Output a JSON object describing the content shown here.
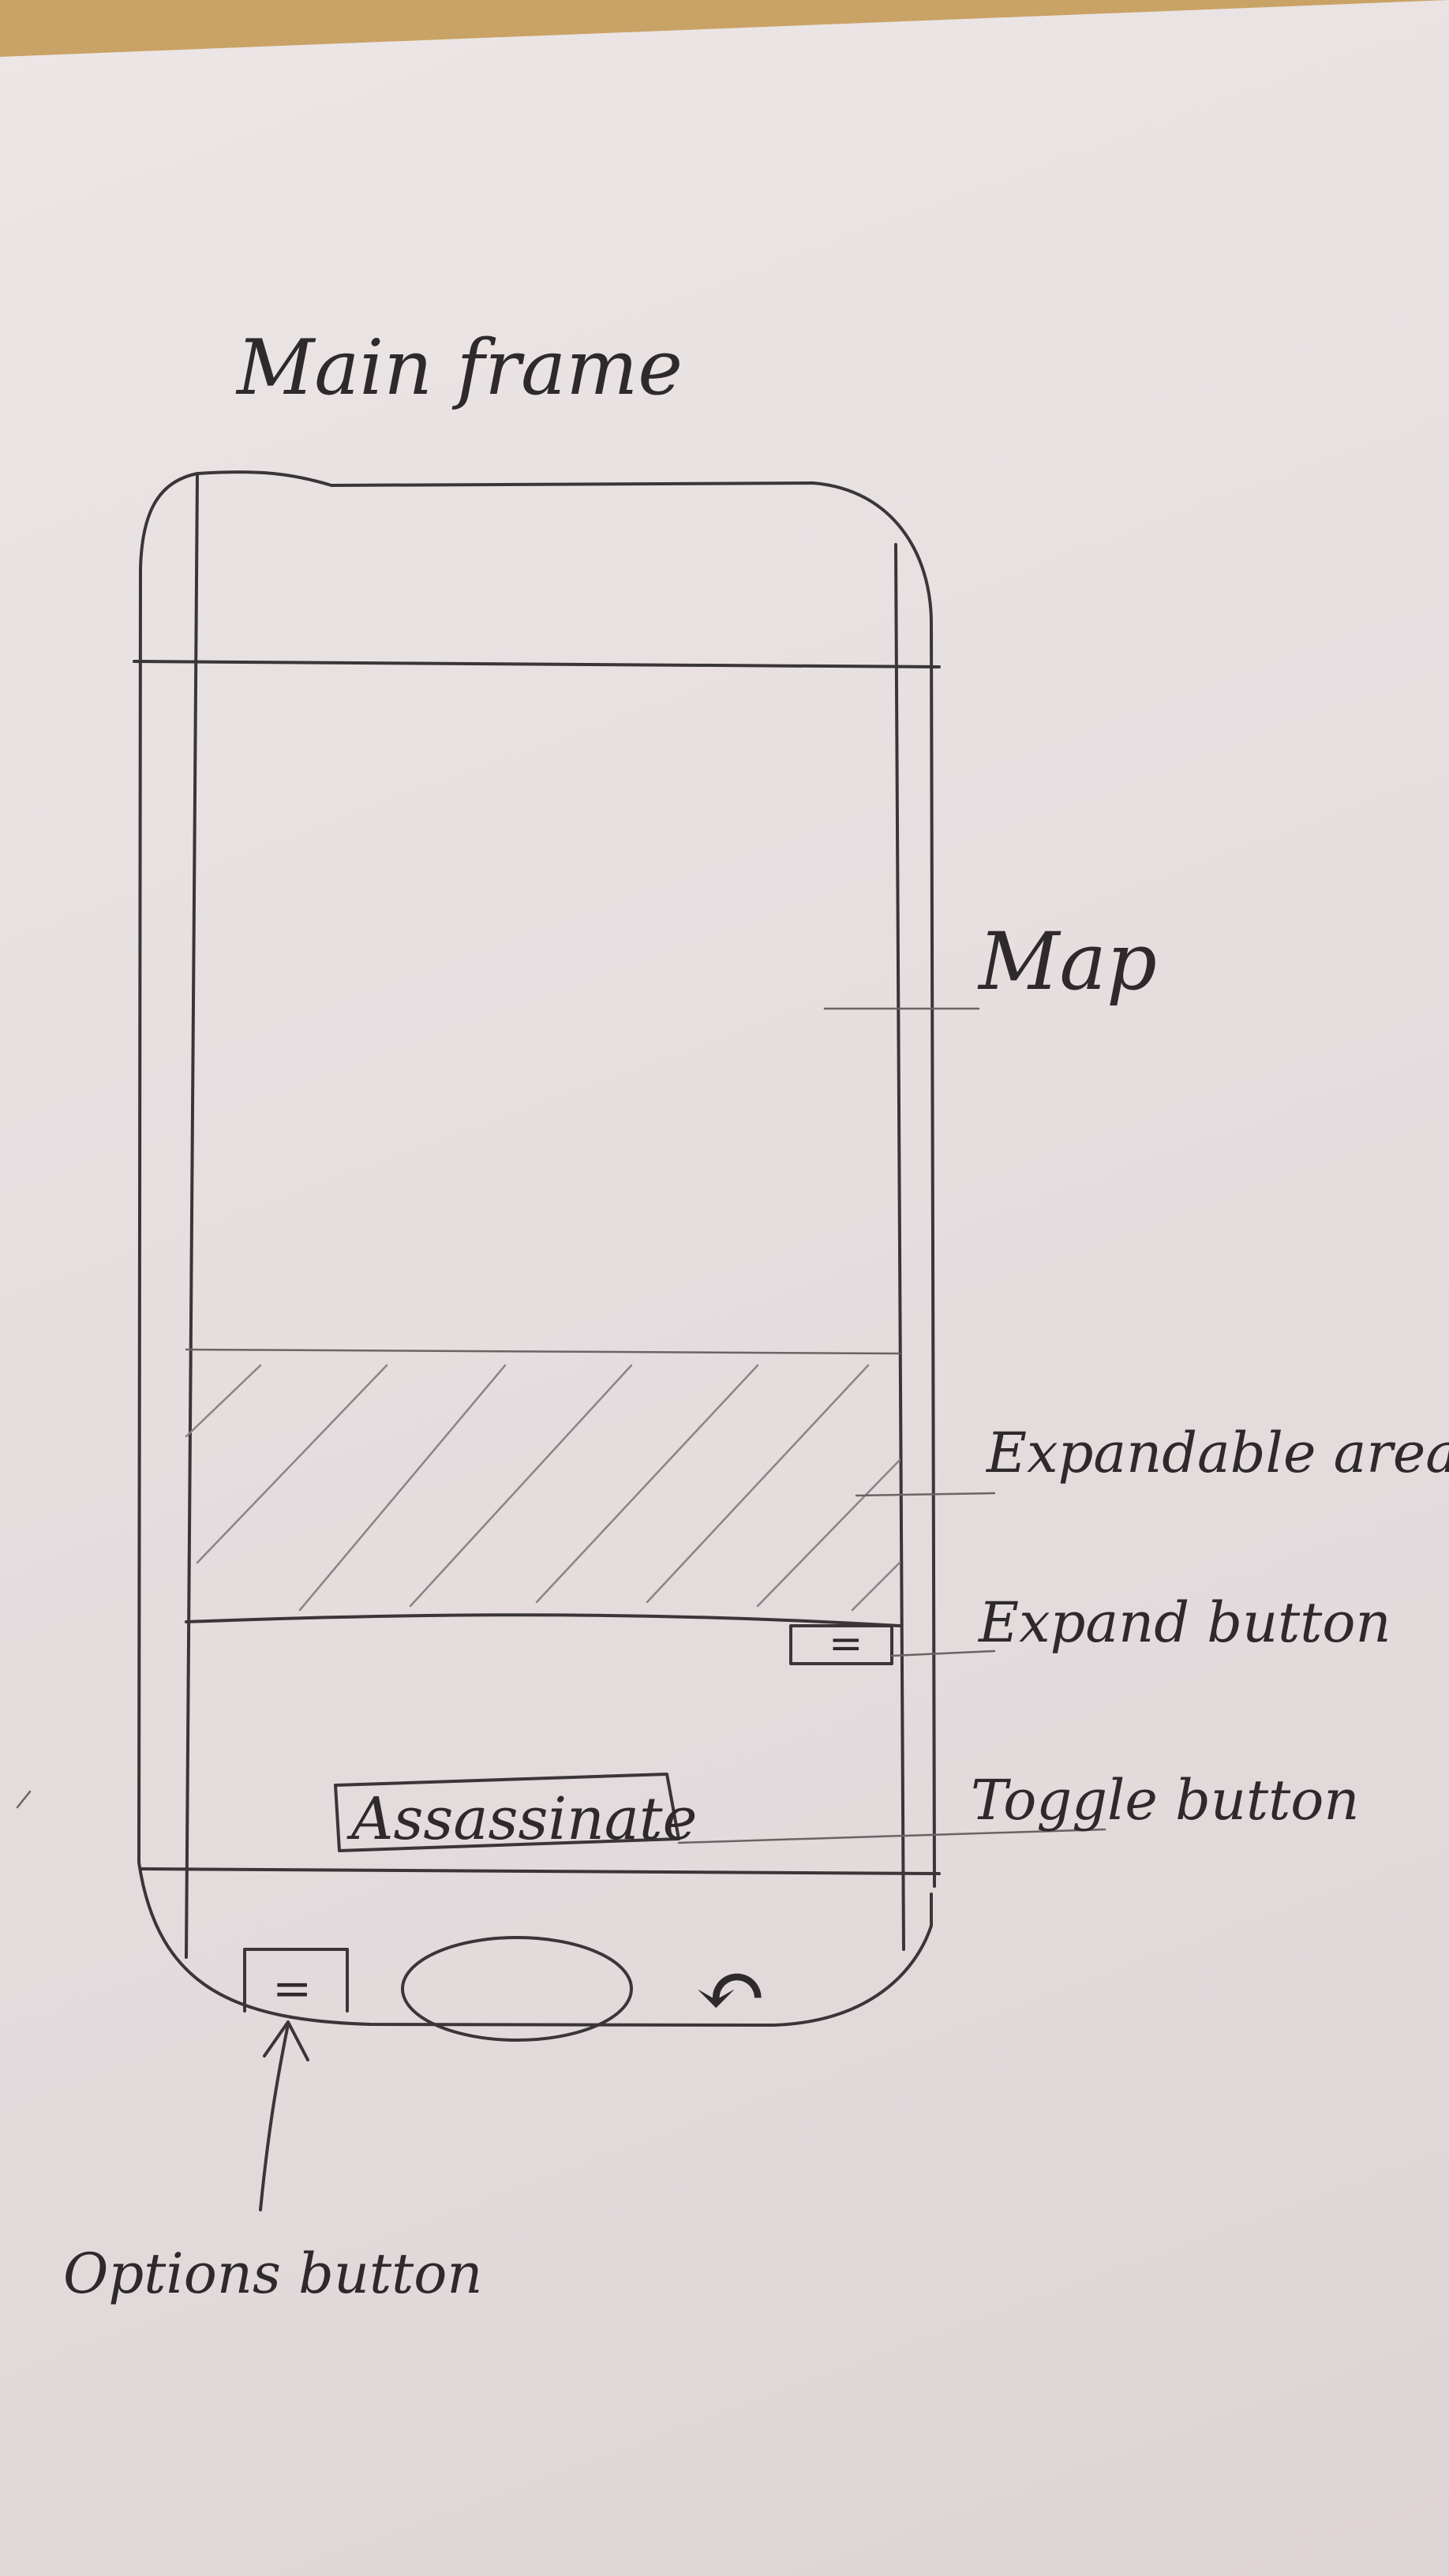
{
  "title": "Main frame",
  "annotations": {
    "map": "Map",
    "expandable_area": "Expandable area",
    "expand_button": "Expand button",
    "toggle_button": "Toggle button",
    "options_button": "Options button"
  },
  "toggle_button_text": "Assassinate",
  "expand_button_glyph": "=",
  "options_button_glyph": "=",
  "back_glyph": "↶",
  "colors": {
    "paper": "#e6dedf",
    "pencil": "#3a3637",
    "desk": "#c9a266"
  }
}
